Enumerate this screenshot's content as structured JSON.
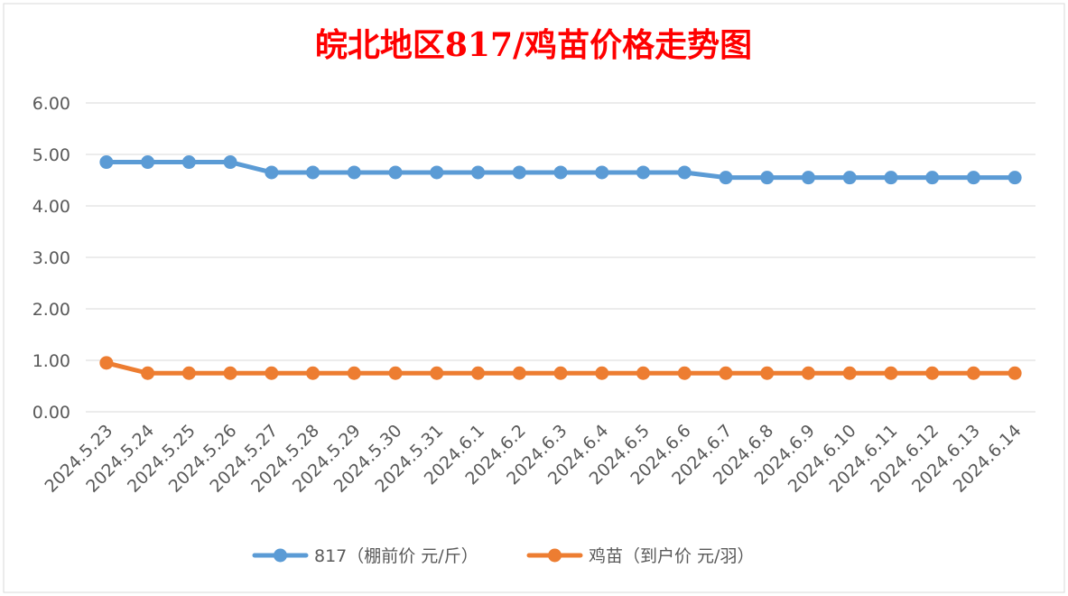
{
  "chart_data": {
    "type": "line",
    "title": "皖北地区817/鸡苗价格走势图",
    "categories": [
      "2024.5.23",
      "2024.5.24",
      "2024.5.25",
      "2024.5.26",
      "2024.5.27",
      "2024.5.28",
      "2024.5.29",
      "2024.5.30",
      "2024.5.31",
      "2024.6.1",
      "2024.6.2",
      "2024.6.3",
      "2024.6.4",
      "2024.6.5",
      "2024.6.6",
      "2024.6.7",
      "2024.6.8",
      "2024.6.9",
      "2024.6.10",
      "2024.6.11",
      "2024.6.12",
      "2024.6.13",
      "2024.6.14"
    ],
    "ylim": [
      0,
      6
    ],
    "yticks": [
      "0.00",
      "1.00",
      "2.00",
      "3.00",
      "4.00",
      "5.00",
      "6.00"
    ],
    "grid": true,
    "legend_position": "bottom",
    "series": [
      {
        "name": "817（棚前价 元/斤）",
        "color": "#5b9bd5",
        "values": [
          4.85,
          4.85,
          4.85,
          4.85,
          4.65,
          4.65,
          4.65,
          4.65,
          4.65,
          4.65,
          4.65,
          4.65,
          4.65,
          4.65,
          4.65,
          4.55,
          4.55,
          4.55,
          4.55,
          4.55,
          4.55,
          4.55,
          4.55
        ]
      },
      {
        "name": "鸡苗（到户价 元/羽）",
        "color": "#ed7d31",
        "values": [
          0.95,
          0.75,
          0.75,
          0.75,
          0.75,
          0.75,
          0.75,
          0.75,
          0.75,
          0.75,
          0.75,
          0.75,
          0.75,
          0.75,
          0.75,
          0.75,
          0.75,
          0.75,
          0.75,
          0.75,
          0.75,
          0.75,
          0.75
        ]
      }
    ]
  }
}
